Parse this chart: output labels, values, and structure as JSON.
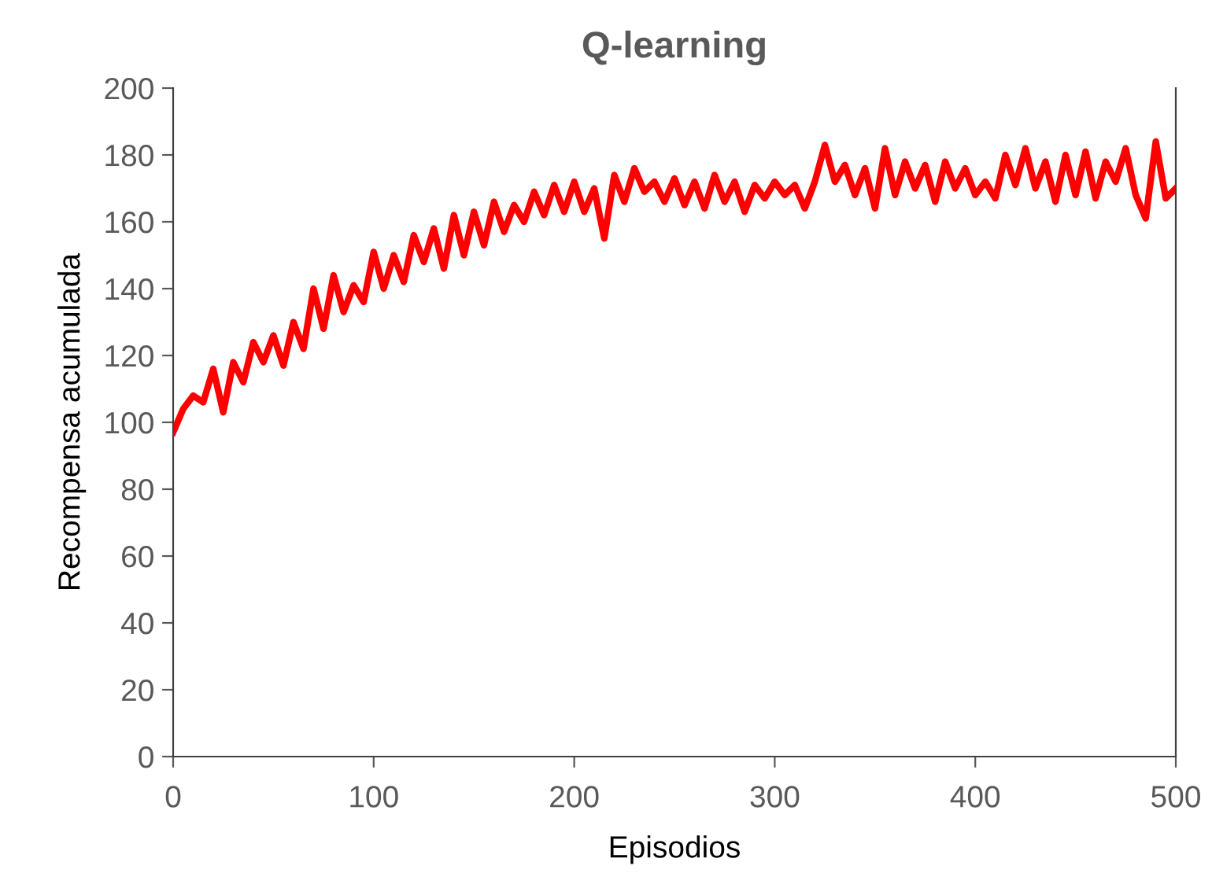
{
  "chart_data": {
    "type": "line",
    "title": "Q-learning",
    "xlabel": "Episodios",
    "ylabel": "Recompensa acumulada",
    "xlim": [
      0,
      500
    ],
    "xticks": [
      0,
      100,
      200,
      300,
      400,
      500
    ],
    "ylim": [
      0,
      200
    ],
    "yticks": [
      0,
      20,
      40,
      60,
      80,
      100,
      120,
      140,
      160,
      180,
      200
    ],
    "grid": false,
    "legend": false,
    "marker": "none",
    "line_style": "solid",
    "series": [
      {
        "color": "#ff0000",
        "x": [
          0,
          5,
          10,
          15,
          20,
          25,
          30,
          35,
          40,
          45,
          50,
          55,
          60,
          65,
          70,
          75,
          80,
          85,
          90,
          95,
          100,
          105,
          110,
          115,
          120,
          125,
          130,
          135,
          140,
          145,
          150,
          155,
          160,
          165,
          170,
          175,
          180,
          185,
          190,
          195,
          200,
          205,
          210,
          215,
          220,
          225,
          230,
          235,
          240,
          245,
          250,
          255,
          260,
          265,
          270,
          275,
          280,
          285,
          290,
          295,
          300,
          305,
          310,
          315,
          320,
          325,
          330,
          335,
          340,
          345,
          350,
          355,
          360,
          365,
          370,
          375,
          380,
          385,
          390,
          395,
          400,
          405,
          410,
          415,
          420,
          425,
          430,
          435,
          440,
          445,
          450,
          455,
          460,
          465,
          470,
          475,
          480,
          485,
          490,
          495,
          500
        ],
        "values": [
          97,
          104,
          108,
          106,
          116,
          103,
          118,
          112,
          124,
          118,
          126,
          117,
          130,
          122,
          140,
          128,
          144,
          133,
          141,
          136,
          151,
          140,
          150,
          142,
          156,
          148,
          158,
          146,
          162,
          150,
          163,
          153,
          166,
          157,
          165,
          160,
          169,
          162,
          171,
          163,
          172,
          163,
          170,
          155,
          174,
          166,
          176,
          169,
          172,
          166,
          173,
          165,
          172,
          164,
          174,
          166,
          172,
          163,
          171,
          167,
          172,
          168,
          171,
          164,
          172,
          183,
          172,
          177,
          168,
          176,
          164,
          182,
          168,
          178,
          170,
          177,
          166,
          178,
          170,
          176,
          168,
          172,
          167,
          180,
          171,
          182,
          170,
          178,
          166,
          180,
          168,
          181,
          167,
          178,
          172,
          182,
          168,
          161,
          184,
          167,
          170
        ]
      }
    ]
  }
}
